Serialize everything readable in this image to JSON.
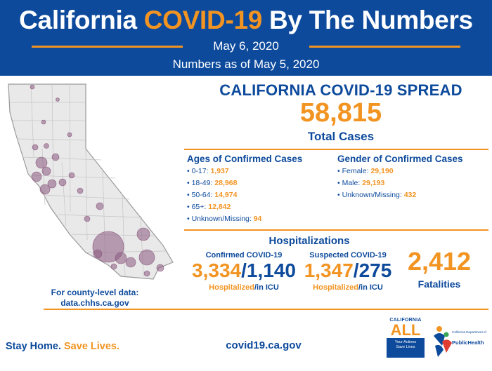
{
  "header": {
    "title_prefix": "California",
    "title_highlight": "COVID-19",
    "title_suffix": "By The Numbers",
    "date": "May 6, 2020",
    "as_of": "Numbers as of May 5, 2020"
  },
  "map": {
    "caption_line1": "For county-level data:",
    "caption_line2": "data.chhs.ca.gov"
  },
  "spread": {
    "title": "CALIFORNIA COVID-19 SPREAD",
    "total_cases": "58,815",
    "total_label": "Total Cases"
  },
  "ages": {
    "title": "Ages of Confirmed Cases",
    "items": [
      {
        "label": "0-17:",
        "value": "1,937"
      },
      {
        "label": "18-49:",
        "value": "28,968"
      },
      {
        "label": "50-64:",
        "value": "14,974"
      },
      {
        "label": "65+:",
        "value": "12,842"
      },
      {
        "label": "Unknown/Missing:",
        "value": "94"
      }
    ]
  },
  "gender": {
    "title": "Gender of Confirmed Cases",
    "items": [
      {
        "label": "Female:",
        "value": "29,190"
      },
      {
        "label": "Male:",
        "value": "29,193"
      },
      {
        "label": "Unknown/Missing:",
        "value": "432"
      }
    ]
  },
  "hospitalizations": {
    "title": "Hospitalizations",
    "confirmed": {
      "title": "Confirmed COVID-19",
      "hospitalized": "3,334",
      "icu": "1,140",
      "label_hosp": "Hospitalized",
      "label_icu": "/in ICU"
    },
    "suspected": {
      "title": "Suspected COVID-19",
      "hospitalized": "1,347",
      "icu": "275",
      "label_hosp": "Hospitalized",
      "label_icu": "/in ICU"
    }
  },
  "fatalities": {
    "value": "2,412",
    "label": "Fatalities"
  },
  "footer": {
    "slogan_part1": "Stay Home.",
    "slogan_part2": "Save Lives.",
    "website": "covid19.ca.gov",
    "ca_logo": {
      "top": "CALIFORNIA",
      "big": "ALL",
      "box_line1": "Your Actions",
      "box_line2": "Save Lives"
    },
    "cdph_logo": {
      "line1": "California Department of",
      "line2": "PublicHealth"
    }
  },
  "colors": {
    "brand_blue": "#0d4a9c",
    "accent_orange": "#f29422",
    "bubble": "#8b5a80"
  }
}
